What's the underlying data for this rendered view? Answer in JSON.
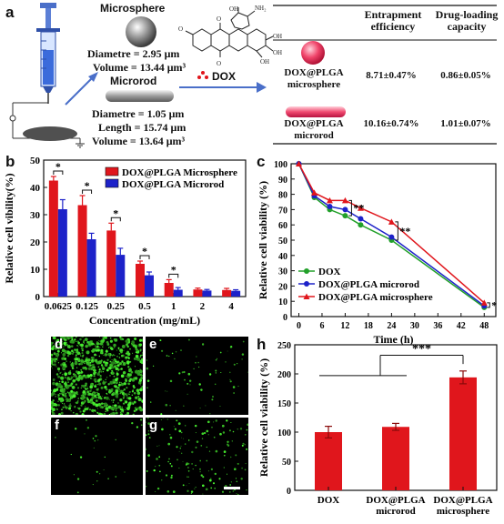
{
  "panels": {
    "a": {
      "letter": "a",
      "microsphere": {
        "title": "Microsphere",
        "diameter": "Diametre = 2.95 μm",
        "volume": "Volume = 13.44 μm³"
      },
      "microrod": {
        "title": "Microrod",
        "diameter": "Diametre = 1.05 μm",
        "length": "Length = 15.74 μm",
        "volume": "Volume = 13.64 μm³"
      },
      "dox_label": "DOX",
      "table": {
        "headers": [
          "",
          "Entrapment efficiency",
          "Drug-loading capacity"
        ],
        "header_lines": [
          [
            "Entrapment",
            "efficiency"
          ],
          [
            "Drug-loading",
            "capacity"
          ]
        ],
        "rows": [
          {
            "name_lines": [
              "DOX@PLGA",
              "microsphere"
            ],
            "entrapment": "8.71±0.47%",
            "loading": "0.86±0.05%"
          },
          {
            "name_lines": [
              "DOX@PLGA",
              "microrod"
            ],
            "entrapment": "10.16±0.74%",
            "loading": "1.01±0.07%"
          }
        ]
      }
    },
    "d": "d",
    "e": "e",
    "f": "f",
    "g": "g"
  },
  "colors": {
    "red": "#e0161c",
    "blue": "#1d22c9",
    "green": "#22a02a"
  },
  "chart_data": [
    {
      "panel": "b",
      "type": "bar",
      "title": "",
      "xlabel": "Concentration (mg/mL)",
      "ylabel": "Relative cell vibility(%)",
      "ylim": [
        0,
        50
      ],
      "yticks": [
        0,
        10,
        20,
        30,
        40,
        50
      ],
      "categories": [
        "0.0625",
        "0.125",
        "0.25",
        "0.5",
        "1",
        "2",
        "4"
      ],
      "legend_placement": "top-right",
      "series": [
        {
          "name": "DOX@PLGA Microsphere",
          "color": "#e0161c",
          "values": [
            42.5,
            33.5,
            24.2,
            12.0,
            5.0,
            2.6,
            2.4
          ],
          "errors": [
            1.5,
            3.5,
            2.7,
            1.0,
            1.2,
            0.5,
            0.6
          ]
        },
        {
          "name": "DOX@PLGA Microrod",
          "color": "#1d22c9",
          "values": [
            32.0,
            21.0,
            15.3,
            7.8,
            2.5,
            2.2,
            2.1
          ],
          "errors": [
            3.5,
            2.2,
            2.4,
            1.2,
            0.8,
            0.4,
            0.4
          ]
        }
      ],
      "significance": [
        {
          "category_index": 0,
          "label": "*"
        },
        {
          "category_index": 1,
          "label": "*"
        },
        {
          "category_index": 2,
          "label": "*"
        },
        {
          "category_index": 3,
          "label": "*"
        },
        {
          "category_index": 4,
          "label": "*"
        }
      ]
    },
    {
      "panel": "c",
      "type": "line",
      "title": "",
      "xlabel": "Time (h)",
      "ylabel": "Relative cell viability (%)",
      "xlim": [
        -2,
        51
      ],
      "ylim": [
        0,
        100
      ],
      "xticks": [
        0,
        6,
        12,
        18,
        24,
        30,
        36,
        42,
        48
      ],
      "yticks": [
        0,
        10,
        20,
        30,
        40,
        50,
        60,
        70,
        80,
        90,
        100
      ],
      "x": [
        0,
        4,
        8,
        12,
        16,
        24,
        48
      ],
      "legend_placement": "bottom-left",
      "series": [
        {
          "name": "DOX",
          "color": "#22a02a",
          "marker": "circle",
          "values": [
            100,
            78,
            70,
            66,
            60,
            50,
            6
          ]
        },
        {
          "name": "DOX@PLGA microrod",
          "color": "#1d22c9",
          "marker": "circle",
          "values": [
            100,
            79,
            72,
            70,
            64,
            52,
            7
          ]
        },
        {
          "name": "DOX@PLGA microsphere",
          "color": "#e0161c",
          "marker": "triangle",
          "values": [
            100,
            81,
            76,
            76,
            71,
            62,
            9
          ]
        }
      ],
      "annotations": [
        "**",
        "**",
        "*"
      ]
    },
    {
      "panel": "h",
      "type": "bar",
      "title": "",
      "xlabel": "",
      "ylabel": "Relative cell viability (%)",
      "ylim": [
        0,
        250
      ],
      "yticks": [
        0,
        50,
        100,
        150,
        200,
        250
      ],
      "categories": [
        "DOX",
        "DOX@PLGA microrod",
        "DOX@PLGA microsphere"
      ],
      "category_lines": [
        [
          "DOX"
        ],
        [
          "DOX@PLGA",
          "microrod"
        ],
        [
          "DOX@PLGA",
          "microsphere"
        ]
      ],
      "series": [
        {
          "name": "",
          "color": "#e0161c",
          "values": [
            100,
            109,
            194
          ],
          "errors": [
            10,
            6,
            11
          ]
        }
      ],
      "annotations": [
        "***"
      ]
    }
  ]
}
